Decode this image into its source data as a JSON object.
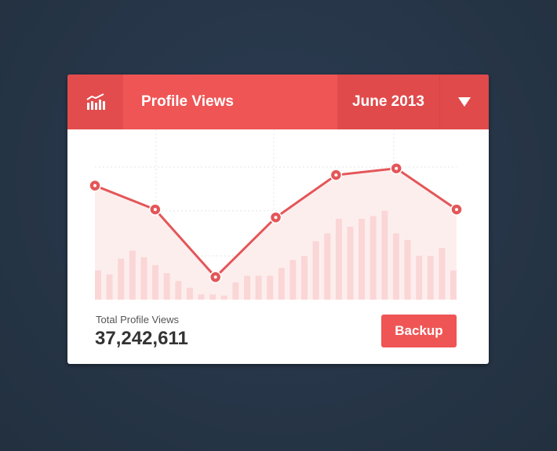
{
  "header": {
    "icon": "bar-chart-trend-icon",
    "title": "Profile Views",
    "date": "June 2013",
    "dropdown_icon": "triangle-down-icon"
  },
  "colors": {
    "accent": "#ef5555",
    "background": "#243349"
  },
  "chart_data": {
    "type": "line",
    "ylim": [
      0,
      100
    ],
    "grid": true,
    "line_values": [
      86,
      68,
      17,
      62,
      94,
      99,
      68
    ],
    "bar_values": [
      22,
      19,
      31,
      37,
      32,
      26,
      20,
      14,
      9,
      4,
      4,
      3,
      13,
      18,
      18,
      18,
      24,
      30,
      33,
      44,
      50,
      61,
      55,
      61,
      63,
      67,
      50,
      45,
      33,
      33,
      39,
      22
    ]
  },
  "footer": {
    "label": "Total Profile Views",
    "total": "37,242,611",
    "button": "Backup"
  }
}
